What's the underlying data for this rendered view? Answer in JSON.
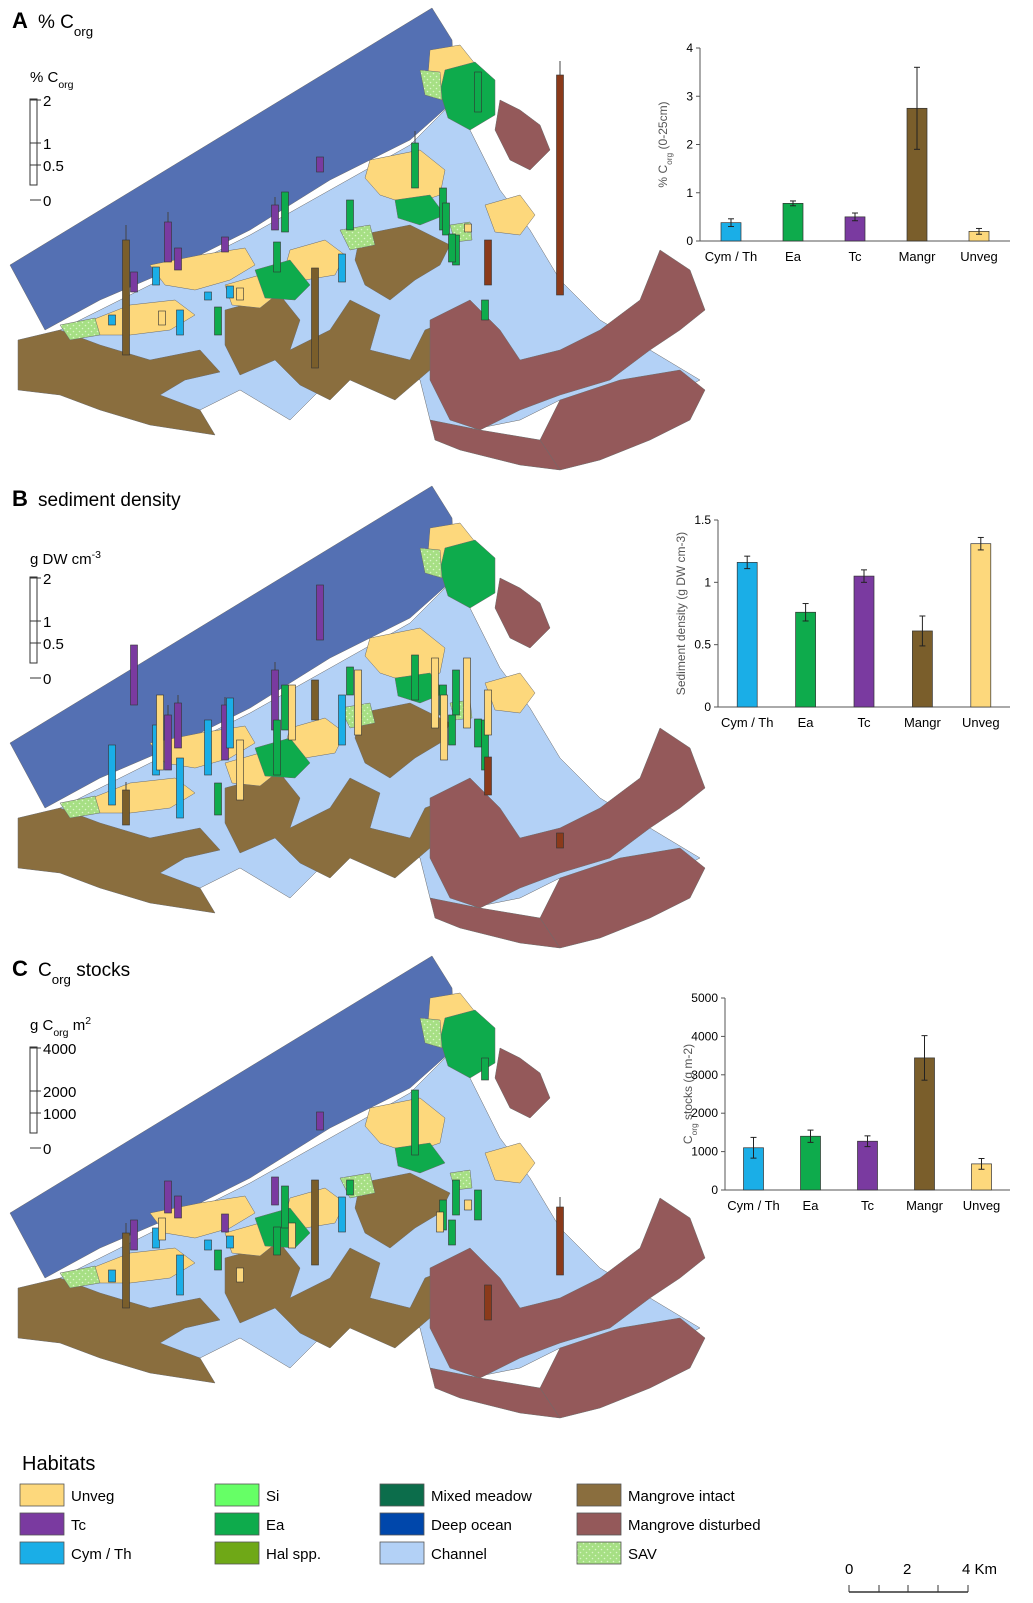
{
  "colors": {
    "ocean": "#5470b3",
    "channel": "#b3d1f6",
    "unveg": "#fdd87c",
    "tc": "#7a3aa0",
    "cym_th": "#1aaee7",
    "si": "#66ff66",
    "ea": "#0eab4c",
    "hal": "#6fa817",
    "mixed": "#0c6d4b",
    "deep": "#0047ab",
    "mangrove_intact": "#8a6e3e",
    "mangrove_disturbed": "#94595a",
    "mangrove_bar": "#7a5e2b",
    "mangrove_dist_bar": "#8b3a1a",
    "sav": "#a6df84"
  },
  "panels": [
    {
      "letter": "A",
      "title_main": "% C",
      "title_sub": "org",
      "title_rest": "",
      "scale": {
        "unit_main": "% C",
        "unit_sub": "org",
        "unit_sup": "",
        "unit_rest": "",
        "ticks": [
          "2",
          "1",
          "0.5",
          "0"
        ]
      }
    },
    {
      "letter": "B",
      "title_main": "sediment density",
      "title_sub": "",
      "title_rest": "",
      "scale": {
        "unit_main": "g DW cm",
        "unit_sub": "",
        "unit_sup": "-3",
        "unit_rest": "",
        "ticks": [
          "2",
          "1",
          "0.5",
          "0"
        ]
      }
    },
    {
      "letter": "C",
      "title_main": "C",
      "title_sub": "org",
      "title_rest": " stocks",
      "scale": {
        "unit_main": "g C",
        "unit_sub": "org",
        "unit_sup": "2",
        "unit_rest": " m",
        "ticks": [
          "4000",
          "2000",
          "1000",
          "0"
        ]
      }
    }
  ],
  "chart_data": [
    {
      "type": "bar",
      "categories": [
        "Cym / Th",
        "Ea",
        "Tc",
        "Mangr",
        "Unveg"
      ],
      "values": [
        0.38,
        0.78,
        0.5,
        2.75,
        0.2
      ],
      "errors": [
        0.08,
        0.05,
        0.08,
        0.85,
        0.06
      ],
      "ylabel_main": "% C",
      "ylabel_sub": "org",
      "ylabel_rest": " (0-25cm)",
      "ylim": [
        0,
        4
      ],
      "yticks": [
        "0",
        "1",
        "2",
        "3",
        "4"
      ],
      "grid": false
    },
    {
      "type": "bar",
      "categories": [
        "Cym / Th",
        "Ea",
        "Tc",
        "Mangr",
        "Unveg"
      ],
      "values": [
        1.16,
        0.76,
        1.05,
        0.61,
        1.31
      ],
      "errors": [
        0.05,
        0.07,
        0.05,
        0.12,
        0.05
      ],
      "ylabel_main": "Sediment density (g DW cm",
      "ylabel_sub": "",
      "ylabel_rest": "-3)",
      "ylim": [
        0,
        1.5
      ],
      "yticks": [
        "0",
        "0.5",
        "1",
        "1.5"
      ],
      "grid": false
    },
    {
      "type": "bar",
      "categories": [
        "Cym / Th",
        "Ea",
        "Tc",
        "Mangr",
        "Unveg"
      ],
      "values": [
        1100,
        1400,
        1270,
        3440,
        680
      ],
      "errors": [
        270,
        160,
        140,
        580,
        140
      ],
      "ylabel_main": "C",
      "ylabel_sub": "org",
      "ylabel_rest": " stocks (g m-2)",
      "ylim": [
        0,
        5000
      ],
      "yticks": [
        "0",
        "1000",
        "2000",
        "3000",
        "4000",
        "5000"
      ],
      "grid": false
    }
  ],
  "legend": {
    "title": "Habitats",
    "items": [
      {
        "label": "Unveg",
        "color": "#fdd87c"
      },
      {
        "label": "Tc",
        "color": "#7a3aa0"
      },
      {
        "label": "Cym  / Th",
        "color": "#1aaee7"
      },
      {
        "label": "Si",
        "color": "#66ff66"
      },
      {
        "label": "Ea",
        "color": "#0eab4c"
      },
      {
        "label": "Hal spp.",
        "color": "#6fa817"
      },
      {
        "label": "Mixed meadow",
        "color": "#0c6d4b"
      },
      {
        "label": "Deep ocean",
        "color": "#0047ab"
      },
      {
        "label": "Channel",
        "color": "#b3d1f6"
      },
      {
        "label": "Mangrove intact",
        "color": "#8a6e3e"
      },
      {
        "label": "Mangrove disturbed",
        "color": "#94595a"
      },
      {
        "label": "SAV",
        "color": "#a6df84",
        "pattern": "dots"
      }
    ]
  },
  "scalebar": {
    "labels": [
      "0",
      "2",
      "4 Km"
    ]
  }
}
